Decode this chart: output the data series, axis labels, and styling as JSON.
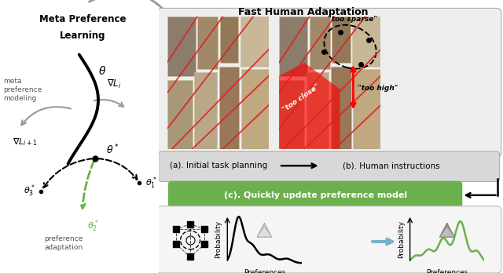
{
  "title": "Fast Human Adaptation",
  "left_title1": "Meta Preference",
  "left_title2": "Learning",
  "left_label_meta": "meta\npreference\nmodeling",
  "left_label_pref": "preference\nadaptation",
  "label_a": "(a). Initial task planning",
  "label_b": "(b). Human instructions",
  "label_c": "(c). Quickly update preference model",
  "too_sparse": "\"too sparse\"",
  "too_close": "\"too close\"",
  "too_high": "\"too high\"",
  "prob_label": "Probability",
  "pref_label": "Preferences",
  "green_color": "#6ab04c",
  "arrow_gray": "#999999",
  "label_box_bg": "#d8d8d8",
  "bottom_box_bg": "#f5f5f5"
}
